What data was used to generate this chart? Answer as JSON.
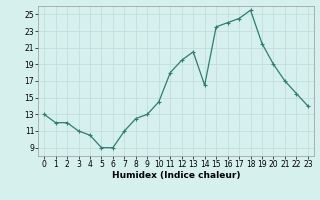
{
  "x": [
    0,
    1,
    2,
    3,
    4,
    5,
    6,
    7,
    8,
    9,
    10,
    11,
    12,
    13,
    14,
    15,
    16,
    17,
    18,
    19,
    20,
    21,
    22,
    23
  ],
  "y": [
    13,
    12,
    12,
    11,
    10.5,
    9,
    9,
    11,
    12.5,
    13,
    14.5,
    18,
    19.5,
    20.5,
    16.5,
    23.5,
    24,
    24.5,
    25.5,
    21.5,
    19,
    17,
    15.5,
    14
  ],
  "line_color": "#2e7d6e",
  "marker": "+",
  "marker_size": 3,
  "marker_linewidth": 0.8,
  "background_color": "#d6f0ee",
  "grid_color": "#c4dedd",
  "xlabel": "Humidex (Indice chaleur)",
  "xlim": [
    -0.5,
    23.5
  ],
  "ylim": [
    8,
    26
  ],
  "yticks": [
    9,
    11,
    13,
    15,
    17,
    19,
    21,
    23,
    25
  ],
  "xticks": [
    0,
    1,
    2,
    3,
    4,
    5,
    6,
    7,
    8,
    9,
    10,
    11,
    12,
    13,
    14,
    15,
    16,
    17,
    18,
    19,
    20,
    21,
    22,
    23
  ],
  "tick_label_size": 5.5,
  "xlabel_size": 6.5,
  "linewidth": 0.9
}
